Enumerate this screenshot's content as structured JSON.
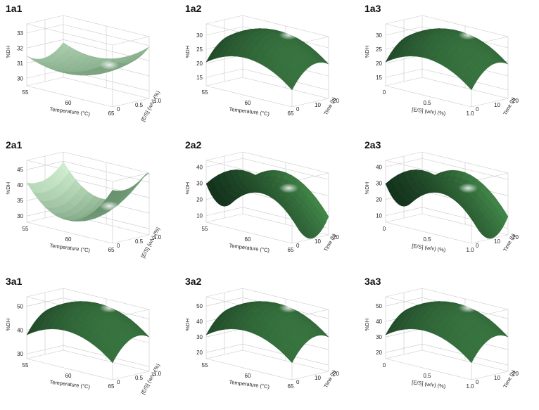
{
  "chart_data": [
    {
      "id": "1a1",
      "type": "surface",
      "xlabel": "Temperature (°C)",
      "ylabel": "[E/S] (w/v) (%)",
      "zlabel": "%DH",
      "x_ticks": [
        "55",
        "60",
        "65"
      ],
      "y_ticks": [
        "0",
        "0.5",
        "1.0"
      ],
      "z_ticks": [
        "30",
        "31",
        "32",
        "33"
      ],
      "zlim": [
        29.5,
        33.6
      ],
      "surface_shape": "saddle-valley",
      "style": "light",
      "color": "#1f5a2c"
    },
    {
      "id": "1a2",
      "type": "surface",
      "xlabel": "Temperature (°C)",
      "ylabel": "Time (h)",
      "zlabel": "%DH",
      "x_ticks": [
        "55",
        "60",
        "65"
      ],
      "y_ticks": [
        "0",
        "10",
        "20"
      ],
      "z_ticks": [
        "15",
        "20",
        "25",
        "30"
      ],
      "zlim": [
        12,
        34
      ],
      "surface_shape": "dome",
      "style": "dark",
      "color": "#1f5a2c"
    },
    {
      "id": "1a3",
      "type": "surface",
      "xlabel": "[E/S] (w/v) (%)",
      "ylabel": "Time (h)",
      "zlabel": "%DH",
      "x_ticks": [
        "0",
        "0.5",
        "1.0"
      ],
      "y_ticks": [
        "0",
        "10",
        "20"
      ],
      "z_ticks": [
        "15",
        "20",
        "25",
        "30"
      ],
      "zlim": [
        12,
        34
      ],
      "surface_shape": "dome",
      "style": "dark",
      "color": "#1f5a2c"
    },
    {
      "id": "2a1",
      "type": "surface",
      "xlabel": "Temperature (°C)",
      "ylabel": "[E/S] (w/v) (%)",
      "zlabel": "%DH",
      "x_ticks": [
        "55",
        "60",
        "65"
      ],
      "y_ticks": [
        "0",
        "0.5",
        "1.0"
      ],
      "z_ticks": [
        "30",
        "35",
        "40",
        "45"
      ],
      "zlim": [
        28,
        48
      ],
      "surface_shape": "bowl",
      "style": "light",
      "color": "#1f5a2c"
    },
    {
      "id": "2a2",
      "type": "surface",
      "xlabel": "Temperature (°C)",
      "ylabel": "Time (h)",
      "zlabel": "%DH",
      "x_ticks": [
        "55",
        "60",
        "65"
      ],
      "y_ticks": [
        "0",
        "10",
        "20"
      ],
      "z_ticks": [
        "10",
        "20",
        "30",
        "40"
      ],
      "zlim": [
        6,
        44
      ],
      "surface_shape": "saddle",
      "style": "dark",
      "color": "#1f5a2c"
    },
    {
      "id": "2a3",
      "type": "surface",
      "xlabel": "[E/S] (w/v) (%)",
      "ylabel": "Time (h)",
      "zlabel": "%DH",
      "x_ticks": [
        "0",
        "0.5",
        "1.0"
      ],
      "y_ticks": [
        "0",
        "10",
        "20"
      ],
      "z_ticks": [
        "10",
        "20",
        "30",
        "40"
      ],
      "zlim": [
        6,
        44
      ],
      "surface_shape": "saddle",
      "style": "dark",
      "color": "#1f5a2c"
    },
    {
      "id": "3a1",
      "type": "surface",
      "xlabel": "Temperature (°C)",
      "ylabel": "[E/S] (w/v) (%)",
      "zlabel": "%DH",
      "x_ticks": [
        "55",
        "60",
        "65"
      ],
      "y_ticks": [
        "0",
        "0.5",
        "1.0"
      ],
      "z_ticks": [
        "30",
        "40",
        "50"
      ],
      "zlim": [
        28,
        54
      ],
      "surface_shape": "dome",
      "style": "dark",
      "color": "#1f5a2c"
    },
    {
      "id": "3a2",
      "type": "surface",
      "xlabel": "Temperature (°C)",
      "ylabel": "Time (h)",
      "zlabel": "%DH",
      "x_ticks": [
        "55",
        "60",
        "65"
      ],
      "y_ticks": [
        "0",
        "10",
        "20"
      ],
      "z_ticks": [
        "20",
        "30",
        "40",
        "50"
      ],
      "zlim": [
        16,
        56
      ],
      "surface_shape": "dome",
      "style": "dark",
      "color": "#1f5a2c"
    },
    {
      "id": "3a3",
      "type": "surface",
      "xlabel": "[E/S] (w/v) (%)",
      "ylabel": "Time (h)",
      "zlabel": "%DH",
      "x_ticks": [
        "0",
        "0.5",
        "1.0"
      ],
      "y_ticks": [
        "0",
        "10",
        "20"
      ],
      "z_ticks": [
        "20",
        "30",
        "40",
        "50"
      ],
      "zlim": [
        16,
        56
      ],
      "surface_shape": "dome",
      "style": "dark",
      "color": "#1f5a2c"
    }
  ]
}
